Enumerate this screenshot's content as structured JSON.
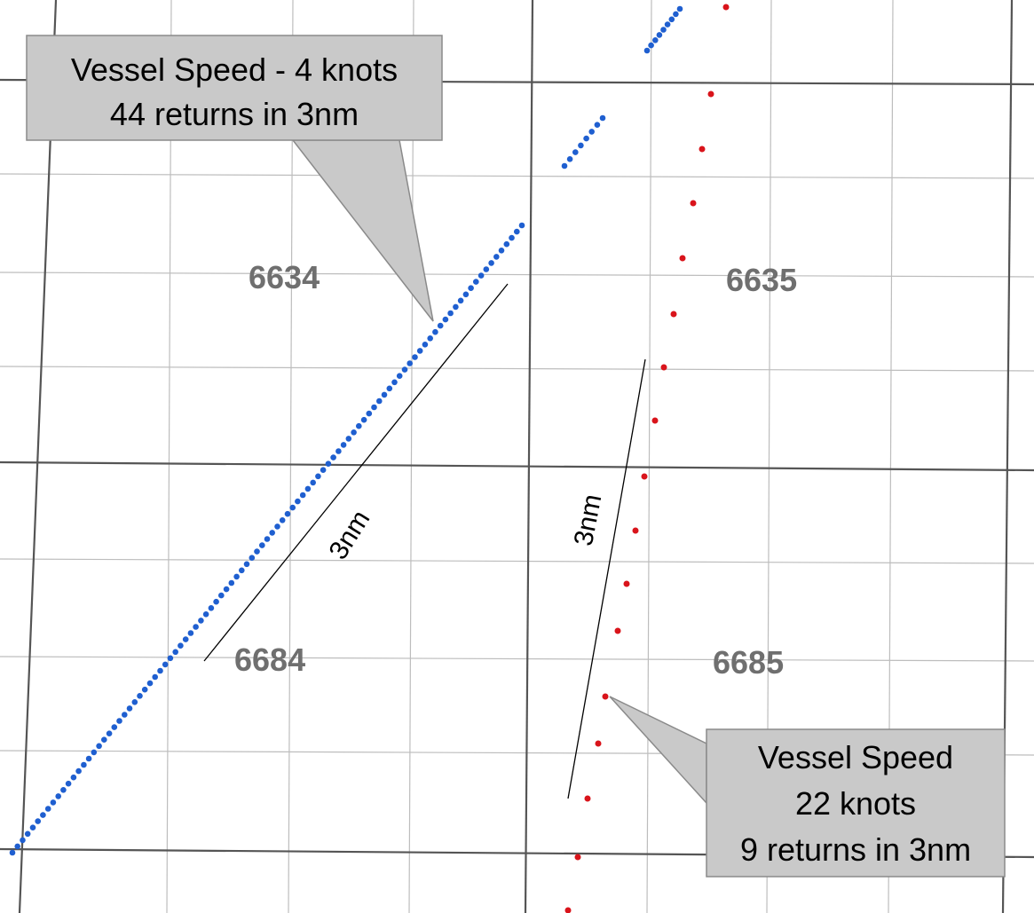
{
  "map": {
    "grid_cells": [
      {
        "id": "cell-6634",
        "label": "6634"
      },
      {
        "id": "cell-6635",
        "label": "6635"
      },
      {
        "id": "cell-6684",
        "label": "6684"
      },
      {
        "id": "cell-6685",
        "label": "6685"
      }
    ],
    "distance_labels": {
      "left": "3nm",
      "right": "3nm"
    },
    "callouts": {
      "slow": {
        "lines": [
          "Vessel Speed - 4 knots",
          "44 returns in 3nm"
        ]
      },
      "fast": {
        "lines": [
          "Vessel Speed",
          "22 knots",
          "9 returns in 3nm"
        ]
      }
    },
    "tracks": {
      "slow": {
        "color": "#1f5fd0",
        "returns_in_3nm": 44
      },
      "fast": {
        "color": "#d9141b",
        "returns_in_3nm": 9
      }
    },
    "colors": {
      "major_grid": "#555555",
      "minor_grid": "#bdbdbd",
      "callout_fill": "#c9c9c9",
      "callout_stroke": "#8a8a8a",
      "cell_label": "#6f6f6f"
    }
  }
}
